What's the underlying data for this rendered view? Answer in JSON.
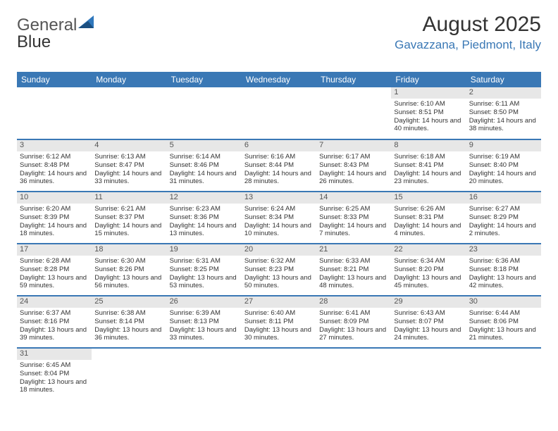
{
  "logo": {
    "part1": "General",
    "part2": "Blue"
  },
  "title": "August 2025",
  "location": "Gavazzana, Piedmont, Italy",
  "colors": {
    "header_bg": "#3a78b5",
    "header_text": "#ffffff",
    "daynum_bg": "#e7e7e7",
    "border": "#3a78b5",
    "location_text": "#3a78b5"
  },
  "weekdays": [
    "Sunday",
    "Monday",
    "Tuesday",
    "Wednesday",
    "Thursday",
    "Friday",
    "Saturday"
  ],
  "weeks": [
    [
      null,
      null,
      null,
      null,
      null,
      {
        "n": "1",
        "sr": "6:10 AM",
        "ss": "8:51 PM",
        "dl": "14 hours and 40 minutes."
      },
      {
        "n": "2",
        "sr": "6:11 AM",
        "ss": "8:50 PM",
        "dl": "14 hours and 38 minutes."
      }
    ],
    [
      {
        "n": "3",
        "sr": "6:12 AM",
        "ss": "8:48 PM",
        "dl": "14 hours and 36 minutes."
      },
      {
        "n": "4",
        "sr": "6:13 AM",
        "ss": "8:47 PM",
        "dl": "14 hours and 33 minutes."
      },
      {
        "n": "5",
        "sr": "6:14 AM",
        "ss": "8:46 PM",
        "dl": "14 hours and 31 minutes."
      },
      {
        "n": "6",
        "sr": "6:16 AM",
        "ss": "8:44 PM",
        "dl": "14 hours and 28 minutes."
      },
      {
        "n": "7",
        "sr": "6:17 AM",
        "ss": "8:43 PM",
        "dl": "14 hours and 26 minutes."
      },
      {
        "n": "8",
        "sr": "6:18 AM",
        "ss": "8:41 PM",
        "dl": "14 hours and 23 minutes."
      },
      {
        "n": "9",
        "sr": "6:19 AM",
        "ss": "8:40 PM",
        "dl": "14 hours and 20 minutes."
      }
    ],
    [
      {
        "n": "10",
        "sr": "6:20 AM",
        "ss": "8:39 PM",
        "dl": "14 hours and 18 minutes."
      },
      {
        "n": "11",
        "sr": "6:21 AM",
        "ss": "8:37 PM",
        "dl": "14 hours and 15 minutes."
      },
      {
        "n": "12",
        "sr": "6:23 AM",
        "ss": "8:36 PM",
        "dl": "14 hours and 13 minutes."
      },
      {
        "n": "13",
        "sr": "6:24 AM",
        "ss": "8:34 PM",
        "dl": "14 hours and 10 minutes."
      },
      {
        "n": "14",
        "sr": "6:25 AM",
        "ss": "8:33 PM",
        "dl": "14 hours and 7 minutes."
      },
      {
        "n": "15",
        "sr": "6:26 AM",
        "ss": "8:31 PM",
        "dl": "14 hours and 4 minutes."
      },
      {
        "n": "16",
        "sr": "6:27 AM",
        "ss": "8:29 PM",
        "dl": "14 hours and 2 minutes."
      }
    ],
    [
      {
        "n": "17",
        "sr": "6:28 AM",
        "ss": "8:28 PM",
        "dl": "13 hours and 59 minutes."
      },
      {
        "n": "18",
        "sr": "6:30 AM",
        "ss": "8:26 PM",
        "dl": "13 hours and 56 minutes."
      },
      {
        "n": "19",
        "sr": "6:31 AM",
        "ss": "8:25 PM",
        "dl": "13 hours and 53 minutes."
      },
      {
        "n": "20",
        "sr": "6:32 AM",
        "ss": "8:23 PM",
        "dl": "13 hours and 50 minutes."
      },
      {
        "n": "21",
        "sr": "6:33 AM",
        "ss": "8:21 PM",
        "dl": "13 hours and 48 minutes."
      },
      {
        "n": "22",
        "sr": "6:34 AM",
        "ss": "8:20 PM",
        "dl": "13 hours and 45 minutes."
      },
      {
        "n": "23",
        "sr": "6:36 AM",
        "ss": "8:18 PM",
        "dl": "13 hours and 42 minutes."
      }
    ],
    [
      {
        "n": "24",
        "sr": "6:37 AM",
        "ss": "8:16 PM",
        "dl": "13 hours and 39 minutes."
      },
      {
        "n": "25",
        "sr": "6:38 AM",
        "ss": "8:14 PM",
        "dl": "13 hours and 36 minutes."
      },
      {
        "n": "26",
        "sr": "6:39 AM",
        "ss": "8:13 PM",
        "dl": "13 hours and 33 minutes."
      },
      {
        "n": "27",
        "sr": "6:40 AM",
        "ss": "8:11 PM",
        "dl": "13 hours and 30 minutes."
      },
      {
        "n": "28",
        "sr": "6:41 AM",
        "ss": "8:09 PM",
        "dl": "13 hours and 27 minutes."
      },
      {
        "n": "29",
        "sr": "6:43 AM",
        "ss": "8:07 PM",
        "dl": "13 hours and 24 minutes."
      },
      {
        "n": "30",
        "sr": "6:44 AM",
        "ss": "8:06 PM",
        "dl": "13 hours and 21 minutes."
      }
    ],
    [
      {
        "n": "31",
        "sr": "6:45 AM",
        "ss": "8:04 PM",
        "dl": "13 hours and 18 minutes."
      },
      null,
      null,
      null,
      null,
      null,
      null
    ]
  ],
  "labels": {
    "sunrise": "Sunrise: ",
    "sunset": "Sunset: ",
    "daylight": "Daylight: "
  }
}
